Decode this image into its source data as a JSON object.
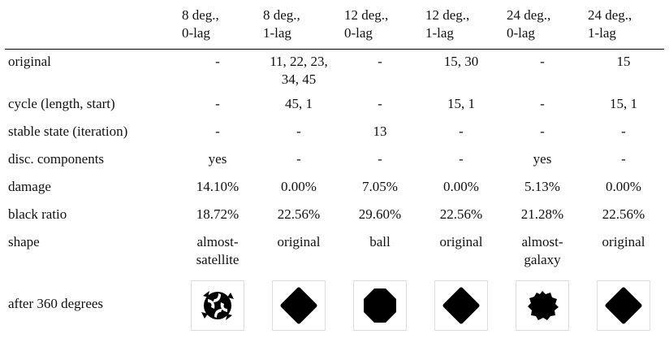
{
  "table": {
    "headers": [
      [
        "8 deg.,",
        "0-lag"
      ],
      [
        "8 deg.,",
        "1-lag"
      ],
      [
        "12 deg.,",
        "0-lag"
      ],
      [
        "12 deg.,",
        "1-lag"
      ],
      [
        "24 deg.,",
        "0-lag"
      ],
      [
        "24 deg.,",
        "1-lag"
      ]
    ],
    "rows": [
      [
        "original",
        "-",
        [
          "11, 22, 23,",
          "34, 45"
        ],
        "-",
        "15, 30",
        "-",
        "15"
      ],
      [
        "cycle (length, start)",
        "-",
        "45, 1",
        "-",
        "15, 1",
        "-",
        "15, 1"
      ],
      [
        "stable state (iteration)",
        "-",
        "-",
        "13",
        "-",
        "-",
        "-"
      ],
      [
        "disc. components",
        "yes",
        "-",
        "-",
        "-",
        "yes",
        "-"
      ],
      [
        "damage",
        "14.10%",
        "0.00%",
        "7.05%",
        "0.00%",
        "5.13%",
        "0.00%"
      ],
      [
        "black ratio",
        "18.72%",
        "22.56%",
        "29.60%",
        "22.56%",
        "21.28%",
        "22.56%"
      ],
      [
        "shape",
        [
          "almost-",
          "satellite"
        ],
        "original",
        "ball",
        "original",
        [
          "almost-",
          "galaxy"
        ],
        "original"
      ]
    ],
    "image_row_label": "after 360 degrees"
  }
}
